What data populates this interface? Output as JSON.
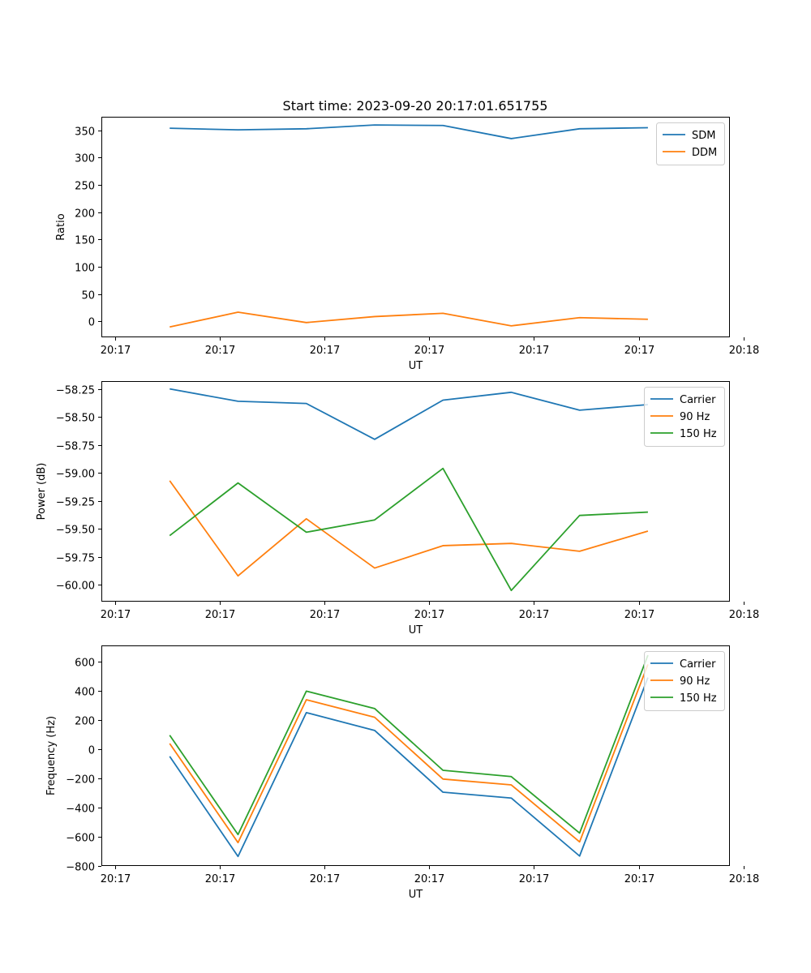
{
  "title": "Start time: 2023-09-20 20:17:01.651755",
  "chart_data": [
    {
      "type": "line",
      "title": "Start time: 2023-09-20 20:17:01.651755",
      "xlabel": "UT",
      "ylabel": "Ratio",
      "x": [
        1,
        2,
        3,
        4,
        5,
        6,
        7,
        8
      ],
      "xlim": [
        0,
        9.2
      ],
      "ylim": [
        -29,
        375
      ],
      "x_ticks": [
        {
          "pos": 0.2,
          "label": "20:17"
        },
        {
          "pos": 1.733,
          "label": "20:17"
        },
        {
          "pos": 3.267,
          "label": "20:17"
        },
        {
          "pos": 4.8,
          "label": "20:17"
        },
        {
          "pos": 6.333,
          "label": "20:17"
        },
        {
          "pos": 7.867,
          "label": "20:17"
        },
        {
          "pos": 9.4,
          "label": "20:18"
        }
      ],
      "y_ticks": [
        0,
        50,
        100,
        150,
        200,
        250,
        300,
        350
      ],
      "legend_position": "top-right",
      "series": [
        {
          "name": "SDM",
          "color": "#1f77b4",
          "values": [
            354,
            351,
            353,
            360,
            359,
            335,
            353,
            355
          ]
        },
        {
          "name": "DDM",
          "color": "#ff7f0e",
          "values": [
            -10,
            17,
            -2,
            9,
            15,
            -8,
            7,
            4
          ]
        }
      ]
    },
    {
      "type": "line",
      "title": "",
      "xlabel": "UT",
      "ylabel": "Power (dB)",
      "x": [
        1,
        2,
        3,
        4,
        5,
        6,
        7,
        8
      ],
      "xlim": [
        0,
        9.2
      ],
      "ylim": [
        -60.15,
        -58.18
      ],
      "x_ticks": [
        {
          "pos": 0.2,
          "label": "20:17"
        },
        {
          "pos": 1.733,
          "label": "20:17"
        },
        {
          "pos": 3.267,
          "label": "20:17"
        },
        {
          "pos": 4.8,
          "label": "20:17"
        },
        {
          "pos": 6.333,
          "label": "20:17"
        },
        {
          "pos": 7.867,
          "label": "20:17"
        },
        {
          "pos": 9.4,
          "label": "20:18"
        }
      ],
      "y_ticks": [
        -60.0,
        -59.75,
        -59.5,
        -59.25,
        -59.0,
        -58.75,
        -58.5,
        -58.25
      ],
      "y_tick_labels": [
        "−60.00",
        "−59.75",
        "−59.50",
        "−59.25",
        "−59.00",
        "−58.75",
        "−58.50",
        "−58.25"
      ],
      "legend_position": "top-right",
      "series": [
        {
          "name": "Carrier",
          "color": "#1f77b4",
          "values": [
            -58.25,
            -58.36,
            -58.38,
            -58.7,
            -58.35,
            -58.28,
            -58.44,
            -58.39
          ]
        },
        {
          "name": "90 Hz",
          "color": "#ff7f0e",
          "values": [
            -59.07,
            -59.92,
            -59.41,
            -59.85,
            -59.65,
            -59.63,
            -59.7,
            -59.52
          ]
        },
        {
          "name": "150 Hz",
          "color": "#2ca02c",
          "values": [
            -59.56,
            -59.09,
            -59.53,
            -59.42,
            -58.96,
            -60.05,
            -59.38,
            -59.35
          ]
        }
      ]
    },
    {
      "type": "line",
      "title": "",
      "xlabel": "UT",
      "ylabel": "Frequency (Hz)",
      "x": [
        1,
        2,
        3,
        4,
        5,
        6,
        7,
        8
      ],
      "xlim": [
        0,
        9.2
      ],
      "ylim": [
        -800,
        710
      ],
      "x_ticks": [
        {
          "pos": 0.2,
          "label": "20:17"
        },
        {
          "pos": 1.733,
          "label": "20:17"
        },
        {
          "pos": 3.267,
          "label": "20:17"
        },
        {
          "pos": 4.8,
          "label": "20:17"
        },
        {
          "pos": 6.333,
          "label": "20:17"
        },
        {
          "pos": 7.867,
          "label": "20:17"
        },
        {
          "pos": 9.4,
          "label": "20:18"
        }
      ],
      "y_ticks": [
        -800,
        -600,
        -400,
        -200,
        0,
        200,
        400,
        600
      ],
      "y_tick_labels": [
        "−800",
        "−600",
        "−400",
        "−200",
        "0",
        "200",
        "400",
        "600"
      ],
      "legend_position": "top-right",
      "series": [
        {
          "name": "Carrier",
          "color": "#1f77b4",
          "values": [
            -50,
            -735,
            250,
            128,
            -295,
            -335,
            -732,
            490
          ]
        },
        {
          "name": "90 Hz",
          "color": "#ff7f0e",
          "values": [
            38,
            -640,
            338,
            218,
            -205,
            -245,
            -635,
            580
          ]
        },
        {
          "name": "150 Hz",
          "color": "#2ca02c",
          "values": [
            95,
            -585,
            397,
            278,
            -145,
            -188,
            -575,
            643
          ]
        }
      ]
    }
  ]
}
